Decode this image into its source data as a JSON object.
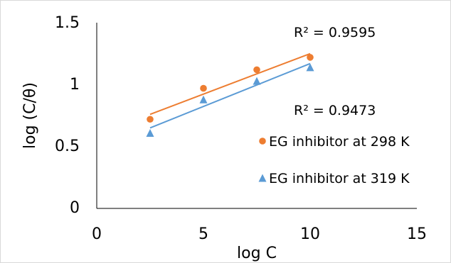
{
  "chart_data": {
    "type": "scatter",
    "xlabel": "log C",
    "ylabel": "log (C/θ)",
    "xlim": [
      0,
      15
    ],
    "ylim": [
      0,
      1.5
    ],
    "xticks": [
      0,
      5,
      10,
      15
    ],
    "yticks": [
      0,
      0.5,
      1,
      1.5
    ],
    "xtick_labels": [
      "0",
      "5",
      "10",
      "15"
    ],
    "ytick_labels": [
      "0",
      "0.5",
      "1",
      "1.5"
    ],
    "grid": false,
    "legend_position": "right",
    "series": [
      {
        "name": "EG inhibitor at 298 K",
        "marker": "circle",
        "color": "#ED7D31",
        "x": [
          2.5,
          5,
          7.5,
          10
        ],
        "y": [
          0.72,
          0.97,
          1.12,
          1.22
        ],
        "trendline": {
          "x": [
            2.5,
            10
          ],
          "y": [
            0.76,
            1.25
          ]
        },
        "r2_label": "R² = 0.9595"
      },
      {
        "name": "EG inhibitor at 319 K",
        "marker": "triangle",
        "color": "#5B9BD5",
        "x": [
          2.5,
          5,
          7.5,
          10
        ],
        "y": [
          0.61,
          0.88,
          1.03,
          1.14
        ],
        "trendline": {
          "x": [
            2.5,
            10
          ],
          "y": [
            0.65,
            1.17
          ]
        },
        "r2_label": "R² = 0.9473"
      }
    ]
  }
}
